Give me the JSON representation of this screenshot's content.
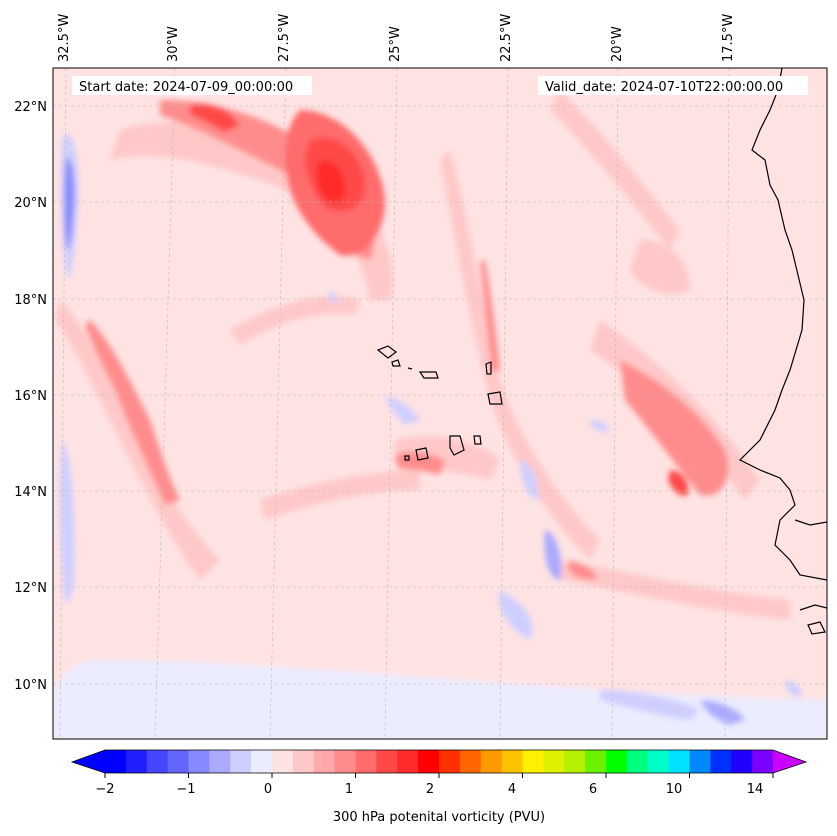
{
  "map": {
    "start_date": "Start date: 2024-07-09_00:00:00",
    "valid_date": "Valid_date: 2024-07-10T22:00:00.00",
    "lon_labels": [
      "32.5°W",
      "30°W",
      "27.5°W",
      "25°W",
      "22.5°W",
      "20°W",
      "17.5°W"
    ],
    "lat_labels": [
      "22°N",
      "20°N",
      "18°N",
      "16°N",
      "14°N",
      "12°N",
      "10°N"
    ],
    "colors": {
      "background": "#ffe3e3",
      "coast": "#000000",
      "grid": "#b8b8b8"
    }
  },
  "colorbar": {
    "tick_labels": [
      "−2",
      "−1",
      "0",
      "1",
      "2",
      "4",
      "6",
      "10",
      "14"
    ],
    "label": "300 hPa potenital vorticity (PVU)",
    "colors": [
      "#0000ff",
      "#2020ff",
      "#4646ff",
      "#6464ff",
      "#8888ff",
      "#aaaaff",
      "#cfcfff",
      "#ececff",
      "#ffe3e3",
      "#ffc8c8",
      "#ffaaaa",
      "#ff8c8c",
      "#ff6c6c",
      "#ff4848",
      "#ff2a2a",
      "#ff0000",
      "#ff3000",
      "#ff6600",
      "#ff9900",
      "#ffc200",
      "#fff000",
      "#ddf000",
      "#b4f000",
      "#6af000",
      "#00ff00",
      "#00ff80",
      "#00ffc8",
      "#00e0ff",
      "#0088ff",
      "#0030ff",
      "#2000ff",
      "#7a00ff"
    ],
    "under_color": "#0000ff",
    "over_color": "#cc00ff"
  }
}
